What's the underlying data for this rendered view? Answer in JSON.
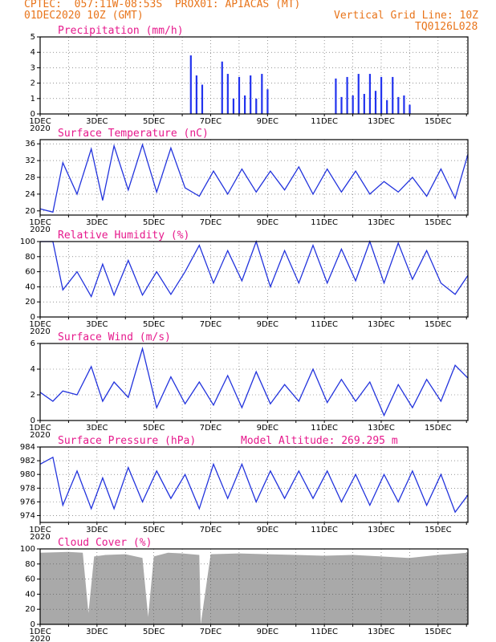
{
  "header": {
    "line1": "CPTEC:  057:11W-08:53S  PROX01: APIACAS (MT)",
    "line2_left": "01DEC2020 10Z (GMT)",
    "line2_right": "Vertical Grid Line: 10Z",
    "line3_right": "TQ0126L028"
  },
  "colors": {
    "header": "#e8741a",
    "title": "#e6198c",
    "line": "#2233dd",
    "bar": "#2233ee",
    "cloud": "#a9a9a9",
    "grid": "#555555"
  },
  "x_labels": [
    "1DEC",
    "3DEC",
    "5DEC",
    "7DEC",
    "9DEC",
    "11DEC",
    "13DEC",
    "15DEC"
  ],
  "x_year_label": "2020",
  "chart_data": [
    {
      "type": "bar",
      "title": "Precipitation (mm/h)",
      "x": [
        6.3,
        6.5,
        6.7,
        7.4,
        7.6,
        7.8,
        8.0,
        8.2,
        8.4,
        8.6,
        8.8,
        9.0,
        11.4,
        11.6,
        11.8,
        12.0,
        12.2,
        12.4,
        12.6,
        12.8,
        13.0,
        13.2,
        13.4,
        13.6,
        13.8,
        14.0
      ],
      "values": [
        3.8,
        2.5,
        1.9,
        3.4,
        2.6,
        1.0,
        2.4,
        1.2,
        2.5,
        1.0,
        2.6,
        1.6,
        2.3,
        1.1,
        2.4,
        1.2,
        2.6,
        1.3,
        2.6,
        1.5,
        2.4,
        0.9,
        2.4,
        1.1,
        1.2,
        0.6
      ],
      "x_range": [
        1,
        16.05
      ],
      "ylim": [
        0,
        5
      ],
      "yticks": [
        0,
        1,
        2,
        3,
        4,
        5
      ],
      "grid": true
    },
    {
      "type": "line",
      "title": "Surface Temperature (nC)",
      "x": [
        1.0,
        1.45,
        1.8,
        2.3,
        2.8,
        3.2,
        3.6,
        4.1,
        4.6,
        5.1,
        5.6,
        6.1,
        6.6,
        7.1,
        7.6,
        8.1,
        8.6,
        9.1,
        9.6,
        10.1,
        10.6,
        11.1,
        11.6,
        12.1,
        12.6,
        13.1,
        13.6,
        14.1,
        14.6,
        15.1,
        15.6,
        16.05
      ],
      "values": [
        20.5,
        19.7,
        31.5,
        24.0,
        34.8,
        22.5,
        35.5,
        25.0,
        35.8,
        24.5,
        35.0,
        25.5,
        23.5,
        29.5,
        24.0,
        30.0,
        24.5,
        29.5,
        25.0,
        30.5,
        24.0,
        30.0,
        24.5,
        29.5,
        24.0,
        27.0,
        24.5,
        28.0,
        23.5,
        30.0,
        23.0,
        33.5
      ],
      "x_range": [
        1,
        16.05
      ],
      "ylim": [
        19,
        37
      ],
      "yticks": [
        20,
        24,
        28,
        32,
        36
      ],
      "grid": true
    },
    {
      "type": "line",
      "title": "Relative Humidity (%)",
      "x": [
        1.0,
        1.45,
        1.8,
        2.3,
        2.8,
        3.2,
        3.6,
        4.1,
        4.6,
        5.1,
        5.6,
        6.1,
        6.6,
        7.1,
        7.6,
        8.1,
        8.6,
        9.1,
        9.6,
        10.1,
        10.6,
        11.1,
        11.6,
        12.1,
        12.6,
        13.1,
        13.6,
        14.1,
        14.6,
        15.1,
        15.6,
        16.05
      ],
      "values": [
        100,
        100,
        36,
        60,
        27,
        70,
        29,
        75,
        29,
        60,
        30,
        60,
        95,
        45,
        88,
        48,
        100,
        40,
        88,
        45,
        95,
        45,
        90,
        48,
        100,
        45,
        98,
        50,
        88,
        45,
        30,
        55
      ],
      "x_range": [
        1,
        16.05
      ],
      "ylim": [
        0,
        100
      ],
      "yticks": [
        0,
        20,
        40,
        60,
        80,
        100
      ],
      "grid": true
    },
    {
      "type": "line",
      "title": "Surface Wind (m/s)",
      "x": [
        1.0,
        1.45,
        1.8,
        2.3,
        2.8,
        3.2,
        3.6,
        4.1,
        4.6,
        5.1,
        5.6,
        6.1,
        6.6,
        7.1,
        7.6,
        8.1,
        8.6,
        9.1,
        9.6,
        10.1,
        10.6,
        11.1,
        11.6,
        12.1,
        12.6,
        13.1,
        13.6,
        14.1,
        14.6,
        15.1,
        15.6,
        16.05
      ],
      "values": [
        2.2,
        1.5,
        2.3,
        2.0,
        4.2,
        1.5,
        3.0,
        1.8,
        5.6,
        1.0,
        3.4,
        1.3,
        3.0,
        1.2,
        3.5,
        1.0,
        3.8,
        1.3,
        2.8,
        1.5,
        4.0,
        1.4,
        3.2,
        1.5,
        3.0,
        0.4,
        2.8,
        1.0,
        3.2,
        1.5,
        4.3,
        3.3
      ],
      "x_range": [
        1,
        16.05
      ],
      "ylim": [
        0,
        6
      ],
      "yticks": [
        0,
        2,
        4,
        6
      ],
      "grid": true
    },
    {
      "type": "line",
      "title": "Surface Pressure (hPa)",
      "annotation": "Model Altitude: 269.295 m",
      "x": [
        1.0,
        1.45,
        1.8,
        2.3,
        2.8,
        3.2,
        3.6,
        4.1,
        4.6,
        5.1,
        5.6,
        6.1,
        6.6,
        7.1,
        7.6,
        8.1,
        8.6,
        9.1,
        9.6,
        10.1,
        10.6,
        11.1,
        11.6,
        12.1,
        12.6,
        13.1,
        13.6,
        14.1,
        14.6,
        15.1,
        15.6,
        16.05
      ],
      "values": [
        981.5,
        982.5,
        975.5,
        980.5,
        975.0,
        979.5,
        975.0,
        981.0,
        976.0,
        980.5,
        976.5,
        980.0,
        975.0,
        981.5,
        976.5,
        981.5,
        976.0,
        980.5,
        976.5,
        980.5,
        976.5,
        980.5,
        976.0,
        980.0,
        975.5,
        980.0,
        976.0,
        980.5,
        975.5,
        980.0,
        974.5,
        977.0
      ],
      "x_range": [
        1,
        16.05
      ],
      "ylim": [
        973,
        984
      ],
      "yticks": [
        974,
        976,
        978,
        980,
        982,
        984
      ],
      "grid": true
    },
    {
      "type": "area",
      "title": "Cloud Cover (%)",
      "x": [
        1.0,
        2.0,
        2.5,
        2.7,
        2.9,
        3.3,
        4.0,
        4.6,
        4.8,
        5.0,
        5.5,
        6.0,
        6.6,
        6.65,
        7.0,
        8.0,
        9.0,
        10.0,
        11.0,
        12.0,
        13.0,
        14.0,
        15.0,
        16.05
      ],
      "values": [
        95,
        96,
        95,
        15,
        90,
        92,
        93,
        88,
        10,
        90,
        95,
        94,
        92,
        0,
        93,
        94,
        93,
        92,
        91,
        92,
        90,
        88,
        92,
        95
      ],
      "x_range": [
        1,
        16.05
      ],
      "ylim": [
        0,
        100
      ],
      "yticks": [
        0,
        20,
        40,
        60,
        80,
        100
      ],
      "grid": true
    }
  ]
}
